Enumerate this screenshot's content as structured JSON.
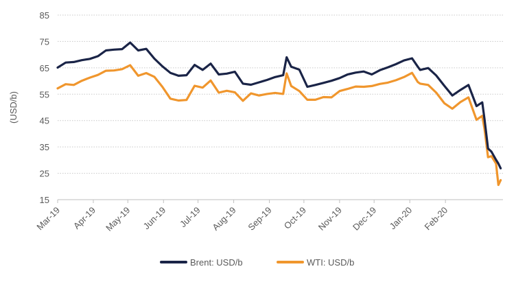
{
  "chart_data": {
    "type": "line",
    "title": "",
    "xlabel": "",
    "ylabel": "(USD/b)",
    "ylim": [
      15,
      85
    ],
    "yticks": [
      15,
      25,
      35,
      45,
      55,
      65,
      75,
      85
    ],
    "grid": "horizontal dotted",
    "legend_position": "bottom",
    "x_tick_labels": [
      "Mar-19",
      "Apr-19",
      "May-19",
      "Jun-19",
      "Jul-19",
      "Aug-19",
      "Sep-19",
      "Oct-19",
      "Nov-19",
      "Dec-19",
      "Jan-20",
      "Feb-20"
    ],
    "x": [
      "2019-03-01",
      "2019-03-08",
      "2019-03-15",
      "2019-03-22",
      "2019-03-29",
      "2019-04-05",
      "2019-04-12",
      "2019-04-19",
      "2019-04-26",
      "2019-05-03",
      "2019-05-10",
      "2019-05-17",
      "2019-05-24",
      "2019-05-31",
      "2019-06-07",
      "2019-06-14",
      "2019-06-21",
      "2019-06-28",
      "2019-07-05",
      "2019-07-12",
      "2019-07-19",
      "2019-07-26",
      "2019-08-02",
      "2019-08-09",
      "2019-08-16",
      "2019-08-23",
      "2019-08-30",
      "2019-09-06",
      "2019-09-13",
      "2019-09-16",
      "2019-09-20",
      "2019-09-27",
      "2019-10-04",
      "2019-10-11",
      "2019-10-18",
      "2019-10-25",
      "2019-11-01",
      "2019-11-08",
      "2019-11-15",
      "2019-11-22",
      "2019-11-29",
      "2019-12-06",
      "2019-12-13",
      "2019-12-20",
      "2019-12-27",
      "2020-01-03",
      "2020-01-08",
      "2020-01-10",
      "2020-01-17",
      "2020-01-24",
      "2020-01-31",
      "2020-02-07",
      "2020-02-14",
      "2020-02-21",
      "2020-02-28",
      "2020-03-04",
      "2020-03-06",
      "2020-03-09",
      "2020-03-12",
      "2020-03-16",
      "2020-03-18",
      "2020-03-20"
    ],
    "series": [
      {
        "name": "Brent: USD/b",
        "color": "#1a2447",
        "values": [
          65.1,
          67.0,
          67.2,
          67.9,
          68.4,
          69.4,
          71.6,
          71.9,
          72.1,
          74.6,
          71.6,
          72.2,
          68.5,
          65.6,
          63.1,
          62.0,
          62.2,
          66.1,
          64.2,
          66.6,
          62.5,
          62.8,
          63.5,
          59.0,
          58.6,
          59.5,
          60.4,
          61.5,
          62.2,
          69.0,
          65.4,
          64.3,
          57.8,
          58.5,
          59.3,
          60.1,
          61.1,
          62.5,
          63.2,
          63.6,
          62.5,
          64.1,
          65.2,
          66.4,
          67.8,
          68.6,
          65.4,
          64.2,
          64.9,
          62.1,
          58.2,
          54.5,
          56.6,
          58.5,
          50.5,
          51.9,
          45.3,
          34.4,
          33.2,
          30.1,
          28.7,
          26.9
        ]
      },
      {
        "name": "WTI: USD/b",
        "color": "#f0962d",
        "values": [
          57.2,
          58.8,
          58.5,
          60.1,
          61.3,
          62.3,
          63.9,
          64.0,
          64.5,
          66.0,
          62.0,
          63.0,
          61.6,
          57.8,
          53.3,
          52.6,
          52.8,
          58.2,
          57.5,
          60.2,
          55.6,
          56.3,
          55.7,
          52.5,
          55.3,
          54.5,
          55.1,
          55.5,
          55.1,
          62.9,
          58.1,
          56.2,
          52.9,
          52.9,
          53.9,
          53.8,
          56.2,
          57.0,
          57.9,
          57.8,
          58.1,
          58.9,
          59.4,
          60.3,
          61.5,
          63.1,
          59.6,
          59.0,
          58.5,
          55.6,
          51.6,
          49.5,
          52.0,
          53.8,
          45.3,
          46.8,
          41.6,
          31.1,
          31.5,
          28.7,
          20.6,
          22.4
        ]
      }
    ]
  },
  "legend": {
    "items": [
      {
        "label": "Brent: USD/b",
        "color": "#1a2447"
      },
      {
        "label": "WTI: USD/b",
        "color": "#f0962d"
      }
    ]
  }
}
